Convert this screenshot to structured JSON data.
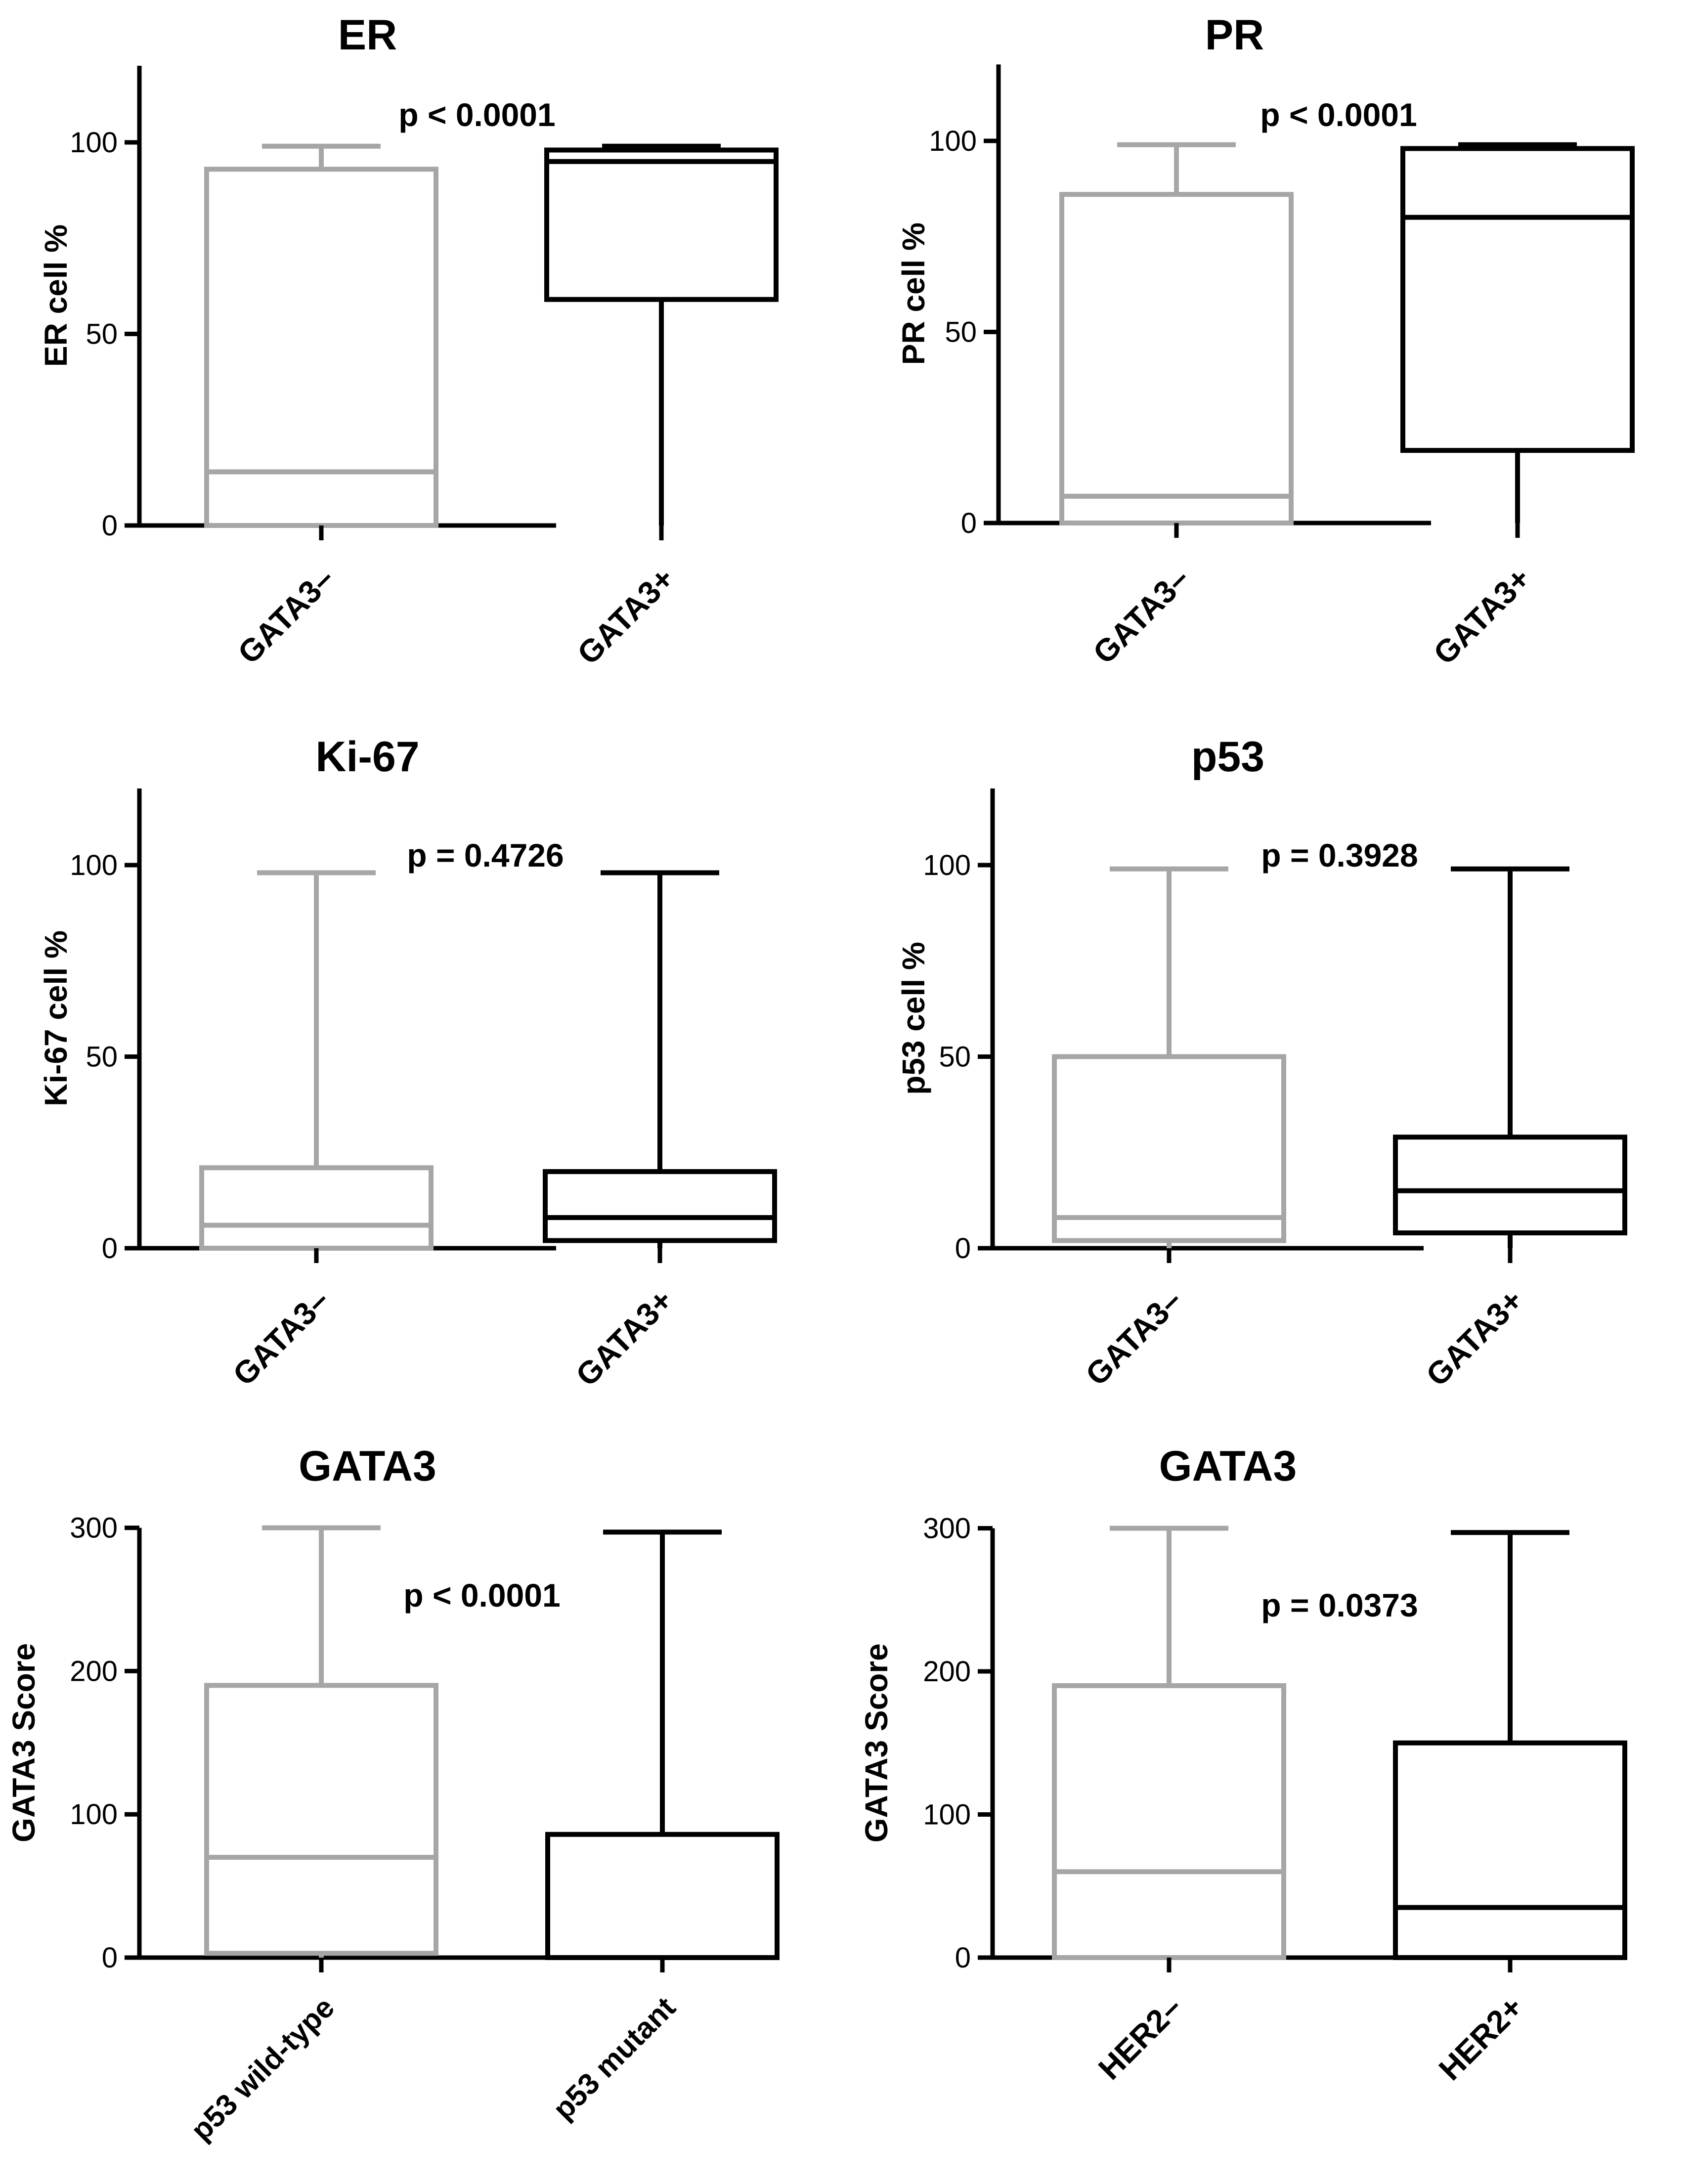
{
  "colors": {
    "background": "#ffffff",
    "axis": "#000000",
    "negative_group": "#a6a6a6",
    "positive_group": "#000000"
  },
  "chart_data": [
    {
      "type": "boxplot",
      "title": "ER",
      "ylabel": "ER cell %",
      "xlabel": "",
      "ylim": [
        0,
        120
      ],
      "yticks": [
        0,
        50,
        100
      ],
      "annotation": "p < 0.0001",
      "categories": [
        "GATA3–",
        "GATA3+"
      ],
      "series": [
        {
          "name": "GATA3–",
          "color": "#a6a6a6",
          "whisker_low": 0,
          "q1": 0,
          "median": 14,
          "q3": 93,
          "whisker_high": 99
        },
        {
          "name": "GATA3+",
          "color": "#000000",
          "whisker_low": 0,
          "q1": 59,
          "median": 95,
          "q3": 98,
          "whisker_high": 99
        }
      ]
    },
    {
      "type": "boxplot",
      "title": "PR",
      "ylabel": "PR cell %",
      "xlabel": "",
      "ylim": [
        0,
        120
      ],
      "yticks": [
        0,
        50,
        100
      ],
      "annotation": "p < 0.0001",
      "categories": [
        "GATA3–",
        "GATA3+"
      ],
      "series": [
        {
          "name": "GATA3–",
          "color": "#a6a6a6",
          "whisker_low": 0,
          "q1": 0,
          "median": 7,
          "q3": 86,
          "whisker_high": 99
        },
        {
          "name": "GATA3+",
          "color": "#000000",
          "whisker_low": 0,
          "q1": 19,
          "median": 80,
          "q3": 98,
          "whisker_high": 99
        }
      ]
    },
    {
      "type": "boxplot",
      "title": "Ki-67",
      "ylabel": "Ki-67 cell %",
      "xlabel": "",
      "ylim": [
        0,
        120
      ],
      "yticks": [
        0,
        50,
        100
      ],
      "annotation": "p = 0.4726",
      "categories": [
        "GATA3–",
        "GATA3+"
      ],
      "series": [
        {
          "name": "GATA3–",
          "color": "#a6a6a6",
          "whisker_low": 0,
          "q1": 0,
          "median": 6,
          "q3": 21,
          "whisker_high": 98
        },
        {
          "name": "GATA3+",
          "color": "#000000",
          "whisker_low": 0,
          "q1": 2,
          "median": 8,
          "q3": 20,
          "whisker_high": 98
        }
      ]
    },
    {
      "type": "boxplot",
      "title": "p53",
      "ylabel": "p53 cell %",
      "xlabel": "",
      "ylim": [
        0,
        120
      ],
      "yticks": [
        0,
        50,
        100
      ],
      "annotation": "p = 0.3928",
      "categories": [
        "GATA3–",
        "GATA3+"
      ],
      "series": [
        {
          "name": "GATA3–",
          "color": "#a6a6a6",
          "whisker_low": 0,
          "q1": 2,
          "median": 8,
          "q3": 50,
          "whisker_high": 99
        },
        {
          "name": "GATA3+",
          "color": "#000000",
          "whisker_low": 0,
          "q1": 4,
          "median": 15,
          "q3": 29,
          "whisker_high": 99
        }
      ]
    },
    {
      "type": "boxplot",
      "title": "GATA3",
      "ylabel": "GATA3 Score",
      "xlabel": "",
      "ylim": [
        0,
        300
      ],
      "yticks": [
        0,
        100,
        200,
        300
      ],
      "annotation": "p < 0.0001",
      "categories": [
        "p53 wild-type",
        "p53 mutant"
      ],
      "series": [
        {
          "name": "p53 wild-type",
          "color": "#a6a6a6",
          "whisker_low": 0,
          "q1": 3,
          "median": 70,
          "q3": 190,
          "whisker_high": 300
        },
        {
          "name": "p53 mutant",
          "color": "#000000",
          "whisker_low": 0,
          "q1": 0,
          "median": 0,
          "q3": 86,
          "whisker_high": 297
        }
      ]
    },
    {
      "type": "boxplot",
      "title": "GATA3",
      "ylabel": "GATA3 Score",
      "xlabel": "",
      "ylim": [
        0,
        300
      ],
      "yticks": [
        0,
        100,
        200,
        300
      ],
      "annotation": "p = 0.0373",
      "categories": [
        "HER2–",
        "HER2+"
      ],
      "series": [
        {
          "name": "HER2–",
          "color": "#a6a6a6",
          "whisker_low": 0,
          "q1": 0,
          "median": 60,
          "q3": 190,
          "whisker_high": 300
        },
        {
          "name": "HER2+",
          "color": "#000000",
          "whisker_low": 0,
          "q1": 0,
          "median": 35,
          "q3": 150,
          "whisker_high": 297
        }
      ]
    }
  ]
}
